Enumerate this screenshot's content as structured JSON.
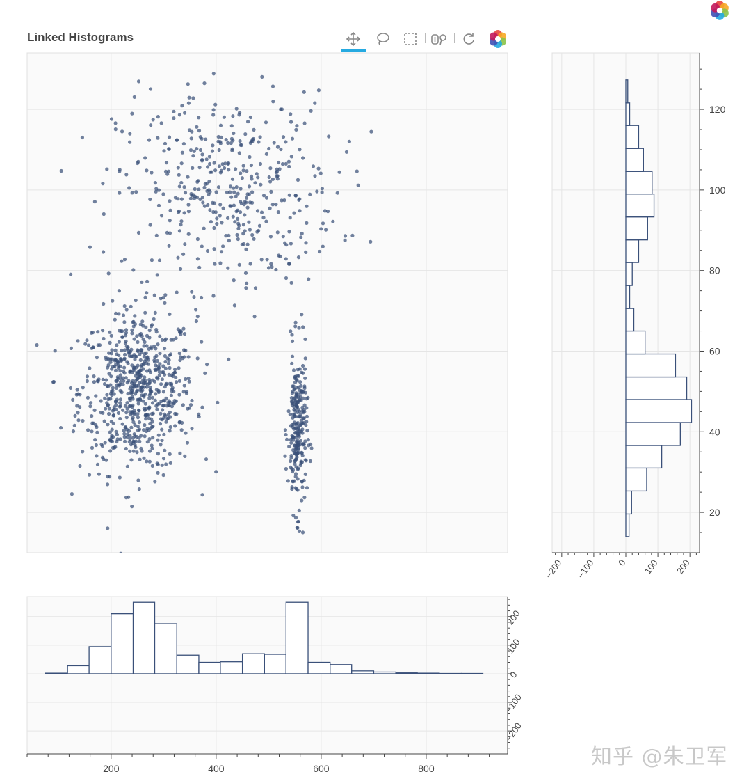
{
  "header": {
    "title": "Linked Histograms",
    "toolbar": [
      {
        "name": "pan-tool",
        "icon": "move-arrows-icon",
        "active": true
      },
      {
        "name": "lasso-select-tool",
        "icon": "lasso-icon",
        "active": false
      },
      {
        "name": "box-select-tool",
        "icon": "box-select-icon",
        "active": false
      },
      {
        "name": "hover-tool",
        "icon": "hover-icon",
        "active": false
      },
      {
        "name": "reset-tool",
        "icon": "reset-icon",
        "active": false
      },
      {
        "name": "bokeh-logo",
        "icon": "bokeh-logo-icon",
        "active": false
      }
    ]
  },
  "watermark": "知乎 @朱卫军",
  "colors": {
    "scatter_fill": "#3a5079",
    "bar_line": "#3a5079",
    "bar_fill": "#ffffff",
    "plot_bg": "#fafafa",
    "grid": "#e5e5e5",
    "active_tool": "#26aae1"
  },
  "chart_data": [
    {
      "id": "main-scatter",
      "type": "scatter",
      "title": "",
      "xlabel": "",
      "ylabel": "",
      "xlim": [
        40,
        955
      ],
      "ylim": [
        10,
        134
      ],
      "grid": true,
      "clusters": [
        {
          "count": 700,
          "center_x": 250,
          "center_y": 50,
          "sd_x": 55,
          "sd_y": 10
        },
        {
          "count": 450,
          "center_x": 420,
          "center_y": 100,
          "sd_x": 105,
          "sd_y": 12
        },
        {
          "count": 250,
          "center_x": 555,
          "center_y": 40,
          "sd_x": 9,
          "sd_y": 10
        }
      ]
    },
    {
      "id": "x-histogram",
      "type": "bar",
      "title": "",
      "xlabel": "",
      "ylabel": "",
      "orientation": "vertical",
      "edges": [
        75,
        117,
        158,
        200,
        242,
        283,
        325,
        367,
        408,
        450,
        492,
        533,
        575,
        617,
        658,
        700,
        742,
        783,
        825,
        867,
        908
      ],
      "values": [
        2,
        28,
        95,
        210,
        250,
        175,
        65,
        40,
        42,
        70,
        68,
        250,
        40,
        32,
        10,
        6,
        3,
        2,
        1,
        1
      ],
      "ylim": [
        -280,
        270
      ],
      "x_ticks": [
        200,
        400,
        600,
        800
      ],
      "y_ticks": [
        -200,
        -100,
        0,
        100,
        200
      ],
      "grid": true
    },
    {
      "id": "y-histogram",
      "type": "bar",
      "title": "",
      "xlabel": "",
      "ylabel": "",
      "orientation": "horizontal",
      "edges": [
        14,
        19.6,
        25.3,
        31,
        36.6,
        42.3,
        48,
        53.6,
        59.3,
        65,
        70.6,
        76.3,
        82,
        87.6,
        93.3,
        99,
        104.6,
        110.3,
        116,
        121.6,
        127.3
      ],
      "values": [
        10,
        18,
        65,
        112,
        170,
        205,
        190,
        155,
        60,
        25,
        12,
        20,
        40,
        68,
        88,
        82,
        55,
        40,
        12,
        6
      ],
      "xlim": [
        -230,
        230
      ],
      "x_ticks": [
        -200,
        -100,
        0,
        100,
        200
      ],
      "y_ticks": [
        20,
        40,
        60,
        80,
        100,
        120
      ],
      "grid": true
    }
  ]
}
